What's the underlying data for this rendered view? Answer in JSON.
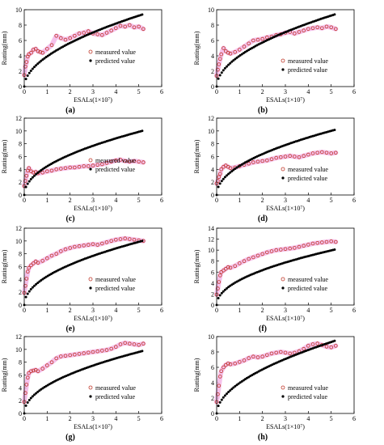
{
  "chart_data": [
    {
      "id": "a",
      "type": "scatter",
      "panel_label": "(a)",
      "xlabel": "ESALs(1×10⁷)",
      "ylabel": "Rutting(mm)",
      "xlim": [
        0,
        6
      ],
      "ylim": [
        0,
        10
      ],
      "xticks": [
        "0",
        "1",
        "2",
        "3",
        "4",
        "5",
        "6"
      ],
      "yticks": [
        "0",
        "2",
        "4",
        "6",
        "8",
        "10"
      ],
      "legend_position": "center-right",
      "series": [
        {
          "name": "measured value",
          "marker": "open-circle",
          "color": "#c0392b",
          "band_color": "#f3b6e8",
          "x": [
            0.0,
            0.05,
            0.1,
            0.15,
            0.2,
            0.3,
            0.4,
            0.5,
            0.6,
            0.7,
            0.8,
            1.0,
            1.2,
            1.4,
            1.6,
            1.8,
            2.0,
            2.2,
            2.4,
            2.6,
            2.8,
            3.0,
            3.2,
            3.4,
            3.6,
            3.8,
            4.0,
            4.2,
            4.4,
            4.6,
            4.8,
            5.0,
            5.2
          ],
          "y": [
            1.5,
            2.6,
            3.2,
            3.9,
            4.2,
            4.4,
            4.8,
            4.9,
            4.6,
            4.5,
            4.4,
            4.9,
            5.4,
            6.6,
            6.3,
            6.1,
            6.3,
            6.6,
            6.9,
            7.0,
            7.2,
            6.9,
            6.8,
            6.7,
            7.0,
            7.3,
            7.6,
            7.9,
            7.8,
            8.0,
            7.7,
            7.8,
            7.5
          ]
        },
        {
          "name": "predicted value",
          "marker": "filled-circle",
          "color": "#000000",
          "model": "power",
          "a": 3.93,
          "b": 0.53
        }
      ]
    },
    {
      "id": "b",
      "type": "scatter",
      "panel_label": "(b)",
      "xlabel": "ESALs(1×10⁷)",
      "ylabel": "Rutting(mm)",
      "xlim": [
        0,
        6
      ],
      "ylim": [
        0,
        10
      ],
      "xticks": [
        "0",
        "1",
        "2",
        "3",
        "4",
        "5",
        "6"
      ],
      "yticks": [
        "0",
        "2",
        "4",
        "6",
        "8",
        "10"
      ],
      "legend_position": "bottom-right",
      "series": [
        {
          "name": "measured value",
          "marker": "open-circle",
          "color": "#c0392b",
          "band_color": "#f3b6e8",
          "x": [
            0.0,
            0.05,
            0.1,
            0.15,
            0.2,
            0.3,
            0.4,
            0.5,
            0.6,
            0.8,
            1.0,
            1.2,
            1.4,
            1.6,
            1.8,
            2.0,
            2.2,
            2.4,
            2.6,
            2.8,
            3.0,
            3.2,
            3.4,
            3.6,
            3.8,
            4.0,
            4.2,
            4.4,
            4.6,
            4.8,
            5.0,
            5.2
          ],
          "y": [
            1.4,
            2.2,
            2.9,
            3.6,
            4.2,
            5.0,
            4.6,
            4.4,
            4.3,
            4.5,
            4.8,
            5.2,
            5.6,
            6.0,
            6.1,
            6.2,
            6.4,
            6.5,
            6.7,
            6.8,
            7.0,
            7.1,
            6.9,
            7.1,
            7.3,
            7.5,
            7.6,
            7.7,
            7.6,
            7.8,
            7.7,
            7.5
          ]
        },
        {
          "name": "predicted value",
          "marker": "filled-circle",
          "color": "#000000",
          "model": "power",
          "a": 4.0,
          "b": 0.52
        }
      ]
    },
    {
      "id": "c",
      "type": "scatter",
      "panel_label": "(c)",
      "xlabel": "ESALs(1×10⁷)",
      "ylabel": "Rutting(mm)",
      "xlim": [
        0,
        6
      ],
      "ylim": [
        0,
        12
      ],
      "xticks": [
        "0",
        "1",
        "2",
        "3",
        "4",
        "5",
        "6"
      ],
      "yticks": [
        "0",
        "2",
        "4",
        "6",
        "8",
        "10",
        "12"
      ],
      "legend_position": "center-right",
      "series": [
        {
          "name": "measured value",
          "marker": "open-circle",
          "color": "#c0392b",
          "band_color": "#f3b6e8",
          "x": [
            0.0,
            0.05,
            0.1,
            0.15,
            0.2,
            0.3,
            0.4,
            0.5,
            0.6,
            0.8,
            1.0,
            1.2,
            1.4,
            1.6,
            1.8,
            2.0,
            2.2,
            2.4,
            2.6,
            2.8,
            3.0,
            3.2,
            3.4,
            3.6,
            3.8,
            4.0,
            4.2,
            4.4,
            4.6,
            4.8,
            5.0,
            5.2
          ],
          "y": [
            1.4,
            2.2,
            3.0,
            3.8,
            4.2,
            3.7,
            3.5,
            3.6,
            3.4,
            3.5,
            3.7,
            3.8,
            4.0,
            4.1,
            4.2,
            4.3,
            4.3,
            4.4,
            4.5,
            4.5,
            4.6,
            4.7,
            4.8,
            5.0,
            5.2,
            5.4,
            5.5,
            5.3,
            5.2,
            5.3,
            5.2,
            5.1
          ]
        },
        {
          "name": "predicted value",
          "marker": "filled-circle",
          "color": "#000000",
          "model": "power",
          "a": 4.48,
          "b": 0.49
        }
      ]
    },
    {
      "id": "d",
      "type": "scatter",
      "panel_label": "(d)",
      "xlabel": "ESALs(1×10⁷)",
      "ylabel": "Rutting(mm)",
      "xlim": [
        0,
        6
      ],
      "ylim": [
        0,
        12
      ],
      "xticks": [
        "0",
        "1",
        "2",
        "3",
        "4",
        "5",
        "6"
      ],
      "yticks": [
        "0",
        "2",
        "4",
        "6",
        "8",
        "10",
        "12"
      ],
      "legend_position": "bottom-right",
      "series": [
        {
          "name": "measured value",
          "marker": "open-circle",
          "color": "#c0392b",
          "band_color": "#f3b6e8",
          "x": [
            0.0,
            0.05,
            0.1,
            0.15,
            0.2,
            0.3,
            0.4,
            0.5,
            0.6,
            0.8,
            1.0,
            1.2,
            1.4,
            1.6,
            1.8,
            2.0,
            2.2,
            2.4,
            2.6,
            2.8,
            3.0,
            3.2,
            3.4,
            3.6,
            3.8,
            4.0,
            4.2,
            4.4,
            4.6,
            4.8,
            5.0,
            5.2
          ],
          "y": [
            1.8,
            2.2,
            2.8,
            3.3,
            4.0,
            4.4,
            4.6,
            4.4,
            4.2,
            4.3,
            4.5,
            4.7,
            4.9,
            5.1,
            5.2,
            5.3,
            5.4,
            5.6,
            5.8,
            5.9,
            6.0,
            6.1,
            6.0,
            5.9,
            6.1,
            6.3,
            6.5,
            6.6,
            6.7,
            6.6,
            6.5,
            6.6
          ]
        },
        {
          "name": "predicted value",
          "marker": "filled-circle",
          "color": "#000000",
          "model": "power",
          "a": 4.55,
          "b": 0.49
        }
      ]
    },
    {
      "id": "e",
      "type": "scatter",
      "panel_label": "(e)",
      "xlabel": "ESALs(1×10⁷)",
      "ylabel": "Rutting(mm)",
      "xlim": [
        0,
        6
      ],
      "ylim": [
        0,
        12
      ],
      "xticks": [
        "0",
        "1",
        "2",
        "3",
        "4",
        "5",
        "6"
      ],
      "yticks": [
        "0",
        "2",
        "4",
        "6",
        "8",
        "10",
        "12"
      ],
      "legend_position": "bottom-right",
      "series": [
        {
          "name": "measured value",
          "marker": "open-circle",
          "color": "#c0392b",
          "band_color": "#f3b6e8",
          "x": [
            0.0,
            0.05,
            0.1,
            0.15,
            0.2,
            0.3,
            0.4,
            0.5,
            0.6,
            0.8,
            1.0,
            1.2,
            1.4,
            1.6,
            1.8,
            2.0,
            2.2,
            2.4,
            2.6,
            2.8,
            3.0,
            3.2,
            3.4,
            3.6,
            3.8,
            4.0,
            4.2,
            4.4,
            4.6,
            4.8,
            5.0,
            5.2
          ],
          "y": [
            1.9,
            3.0,
            4.1,
            5.2,
            5.8,
            6.2,
            6.5,
            6.8,
            6.6,
            6.9,
            7.3,
            7.7,
            8.0,
            8.4,
            8.7,
            8.9,
            9.1,
            9.2,
            9.3,
            9.4,
            9.5,
            9.4,
            9.6,
            9.8,
            10.0,
            10.2,
            10.3,
            10.4,
            10.3,
            10.2,
            10.1,
            10.0
          ]
        },
        {
          "name": "predicted value",
          "marker": "filled-circle",
          "color": "#000000",
          "model": "power",
          "a": 4.48,
          "b": 0.49
        }
      ]
    },
    {
      "id": "f",
      "type": "scatter",
      "panel_label": "(f)",
      "xlabel": "ESALs(1×10⁷)",
      "ylabel": "Rutting(mm)",
      "xlim": [
        0,
        6
      ],
      "ylim": [
        0,
        14
      ],
      "xticks": [
        "0",
        "1",
        "2",
        "3",
        "4",
        "5",
        "6"
      ],
      "yticks": [
        "0",
        "2",
        "4",
        "6",
        "8",
        "10",
        "12",
        "14"
      ],
      "legend_position": "bottom-right",
      "series": [
        {
          "name": "measured value",
          "marker": "open-circle",
          "color": "#c0392b",
          "band_color": "#f3b6e8",
          "x": [
            0.0,
            0.05,
            0.1,
            0.15,
            0.2,
            0.3,
            0.4,
            0.5,
            0.6,
            0.8,
            1.0,
            1.2,
            1.4,
            1.6,
            1.8,
            2.0,
            2.2,
            2.4,
            2.6,
            2.8,
            3.0,
            3.2,
            3.4,
            3.6,
            3.8,
            4.0,
            4.2,
            4.4,
            4.6,
            4.8,
            5.0,
            5.2
          ],
          "y": [
            1.9,
            3.0,
            4.2,
            5.4,
            6.0,
            6.3,
            6.6,
            6.9,
            6.8,
            7.1,
            7.6,
            8.0,
            8.4,
            8.7,
            9.0,
            9.3,
            9.6,
            9.8,
            10.0,
            10.1,
            10.2,
            10.3,
            10.4,
            10.6,
            10.8,
            11.0,
            11.2,
            11.3,
            11.4,
            11.5,
            11.6,
            11.5
          ]
        },
        {
          "name": "predicted value",
          "marker": "filled-circle",
          "color": "#000000",
          "model": "power",
          "a": 4.52,
          "b": 0.49
        }
      ]
    },
    {
      "id": "g",
      "type": "scatter",
      "panel_label": "(g)",
      "xlabel": "ESALs(1×10⁷)",
      "ylabel": "Rutting(mm)",
      "xlim": [
        0,
        6
      ],
      "ylim": [
        0,
        12
      ],
      "xticks": [
        "0",
        "1",
        "2",
        "3",
        "4",
        "5",
        "6"
      ],
      "yticks": [
        "0",
        "2",
        "4",
        "6",
        "8",
        "10",
        "12"
      ],
      "legend_position": "bottom-right",
      "series": [
        {
          "name": "measured value",
          "marker": "open-circle",
          "color": "#c0392b",
          "band_color": "#f3b6e8",
          "x": [
            0.0,
            0.05,
            0.1,
            0.15,
            0.2,
            0.3,
            0.4,
            0.5,
            0.6,
            0.8,
            1.0,
            1.2,
            1.4,
            1.6,
            1.8,
            2.0,
            2.2,
            2.4,
            2.6,
            2.8,
            3.0,
            3.2,
            3.4,
            3.6,
            3.8,
            4.0,
            4.2,
            4.4,
            4.6,
            4.8,
            5.0,
            5.2
          ],
          "y": [
            1.8,
            3.2,
            4.5,
            5.6,
            6.3,
            6.6,
            6.7,
            6.8,
            6.6,
            7.0,
            7.5,
            8.0,
            8.6,
            8.9,
            9.0,
            9.1,
            9.2,
            9.3,
            9.4,
            9.5,
            9.6,
            9.7,
            9.8,
            9.9,
            10.1,
            10.4,
            10.8,
            11.0,
            10.9,
            10.8,
            10.7,
            10.9
          ]
        },
        {
          "name": "predicted value",
          "marker": "filled-circle",
          "color": "#000000",
          "model": "power",
          "a": 4.36,
          "b": 0.49
        }
      ]
    },
    {
      "id": "h",
      "type": "scatter",
      "panel_label": "(h)",
      "xlabel": "ESALs(1×10⁷)",
      "ylabel": "Rutting(mm)",
      "xlim": [
        0,
        6
      ],
      "ylim": [
        0,
        10
      ],
      "xticks": [
        "0",
        "1",
        "2",
        "3",
        "4",
        "5",
        "6"
      ],
      "yticks": [
        "0",
        "2",
        "4",
        "6",
        "8",
        "10"
      ],
      "legend_position": "bottom-right",
      "series": [
        {
          "name": "measured value",
          "marker": "open-circle",
          "color": "#c0392b",
          "band_color": "#f3b6e8",
          "x": [
            0.0,
            0.05,
            0.1,
            0.15,
            0.2,
            0.3,
            0.4,
            0.5,
            0.6,
            0.8,
            1.0,
            1.2,
            1.4,
            1.6,
            1.8,
            2.0,
            2.2,
            2.4,
            2.6,
            2.8,
            3.0,
            3.2,
            3.4,
            3.6,
            3.8,
            4.0,
            4.2,
            4.4,
            4.6,
            4.8,
            5.0,
            5.2
          ],
          "y": [
            1.5,
            2.5,
            3.6,
            4.8,
            5.5,
            6.0,
            6.3,
            6.5,
            6.4,
            6.5,
            6.7,
            6.9,
            7.2,
            7.4,
            7.3,
            7.4,
            7.6,
            7.8,
            7.9,
            8.0,
            7.9,
            7.8,
            7.9,
            8.1,
            8.4,
            8.8,
            9.0,
            9.1,
            8.9,
            8.7,
            8.6,
            8.8
          ]
        },
        {
          "name": "predicted value",
          "marker": "filled-circle",
          "color": "#000000",
          "model": "power",
          "a": 3.96,
          "b": 0.53
        }
      ]
    }
  ]
}
